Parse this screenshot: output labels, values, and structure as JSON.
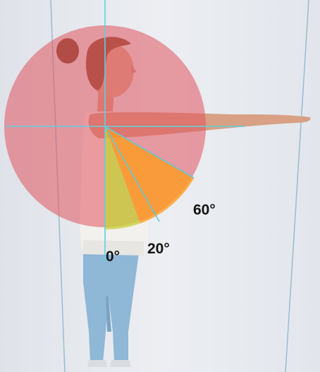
{
  "photo": {
    "subject": "standing-woman-side-view-arm-raised-forward",
    "background_color": "#e6e9ee",
    "wall_line_color": "#8fb3c8",
    "axis_line_color": "#5fd0e0"
  },
  "overlay": {
    "circle_color": "#e0545e",
    "sector_60_color": "#ff9b1e",
    "sector_20_color": "#c6d23c",
    "arm_elevation_deg": 90
  },
  "angle_labels": {
    "deg60": "60°",
    "deg20": "20°",
    "deg0": "0°"
  }
}
